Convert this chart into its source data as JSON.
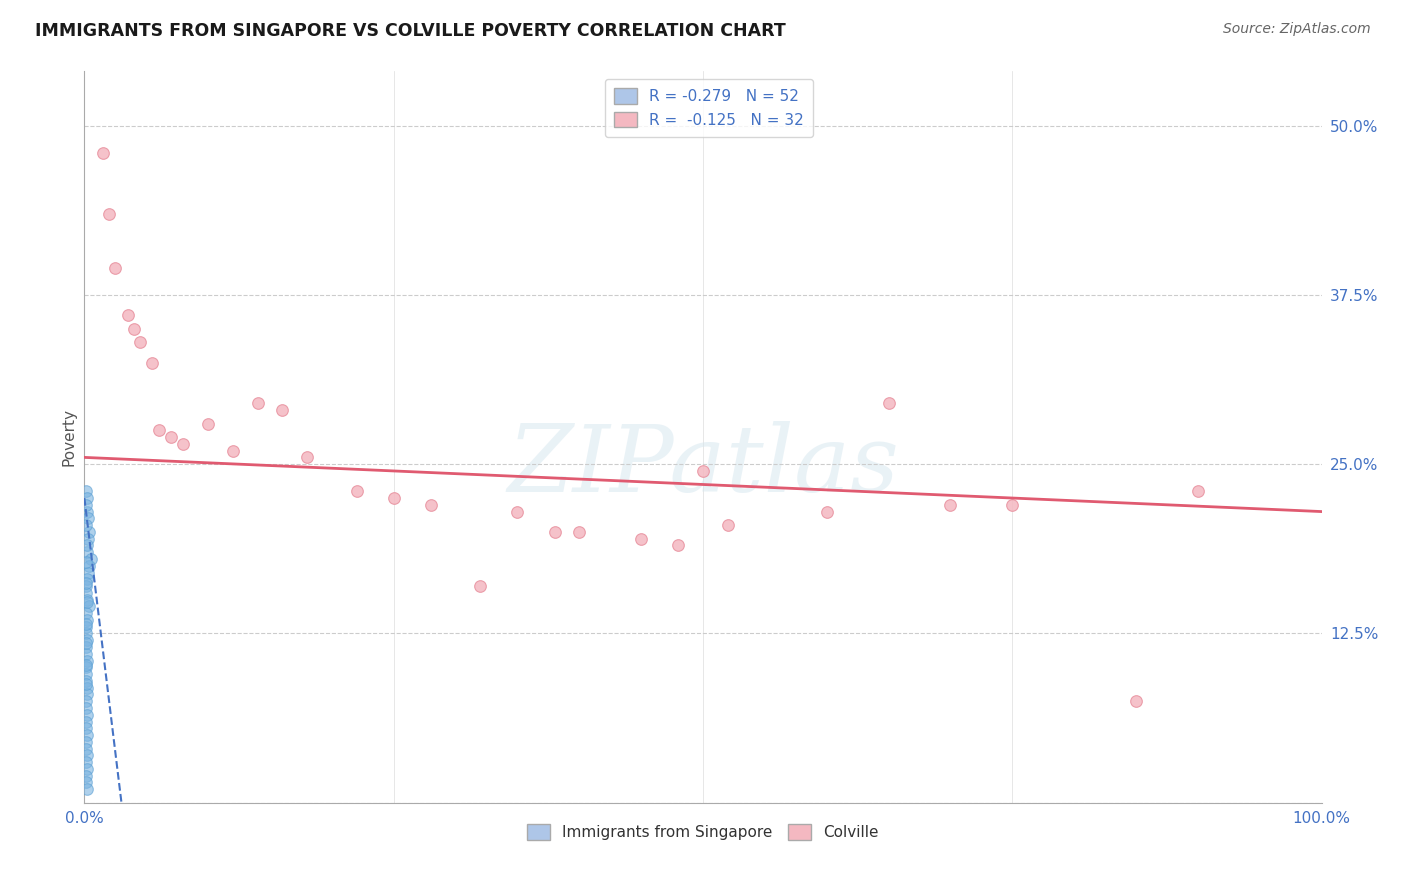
{
  "title": "IMMIGRANTS FROM SINGAPORE VS COLVILLE POVERTY CORRELATION CHART",
  "source": "Source: ZipAtlas.com",
  "ylabel": "Poverty",
  "xlim": [
    0,
    100
  ],
  "ylim": [
    0,
    54
  ],
  "yticks": [
    0,
    12.5,
    25.0,
    37.5,
    50.0
  ],
  "ytick_labels": [
    "",
    "12.5%",
    "25.0%",
    "37.5%",
    "50.0%"
  ],
  "xticks": [
    0,
    25,
    50,
    75,
    100
  ],
  "xtick_labels": [
    "0.0%",
    "",
    "",
    "",
    "100.0%"
  ],
  "grid_color": "#cccccc",
  "background_color": "#ffffff",
  "watermark_text": "ZIPatlas",
  "legend": {
    "series1_label": "R = -0.279   N = 52",
    "series2_label": "R =  -0.125   N = 32",
    "series1_color": "#aec6e8",
    "series2_color": "#f4b8c1"
  },
  "blue_scatter": {
    "color": "#7ab3e0",
    "edge_color": "#5a9fd4",
    "alpha": 0.6,
    "size": 70,
    "x": [
      0.15,
      0.2,
      0.25,
      0.3,
      0.4,
      0.3,
      0.2,
      0.5,
      0.4,
      0.3,
      0.2,
      0.15,
      0.1,
      0.25,
      0.35,
      0.15,
      0.2,
      0.1,
      0.15,
      0.2,
      0.15,
      0.1,
      0.2,
      0.15,
      0.1,
      0.15,
      0.2,
      0.25,
      0.15,
      0.1,
      0.2,
      0.15,
      0.1,
      0.2,
      0.15,
      0.1,
      0.2,
      0.15,
      0.25,
      0.1,
      0.15,
      0.2,
      0.1,
      0.15,
      0.2,
      0.1,
      0.15,
      0.2,
      0.1,
      0.15,
      0.1,
      0.15
    ],
    "y": [
      23.0,
      22.5,
      21.5,
      21.0,
      20.0,
      19.5,
      18.5,
      18.0,
      17.5,
      17.0,
      16.5,
      16.0,
      15.5,
      15.0,
      14.5,
      14.0,
      13.5,
      13.0,
      12.5,
      12.0,
      11.5,
      11.0,
      10.5,
      10.0,
      9.5,
      9.0,
      8.5,
      8.0,
      7.5,
      7.0,
      6.5,
      6.0,
      5.5,
      5.0,
      4.5,
      4.0,
      3.5,
      3.0,
      2.5,
      2.0,
      1.5,
      1.0,
      22.0,
      20.5,
      19.0,
      17.8,
      16.2,
      14.8,
      13.2,
      11.8,
      10.2,
      8.8
    ]
  },
  "pink_scatter": {
    "color": "#f4b8c1",
    "edge_color": "#e8909e",
    "alpha": 0.85,
    "size": 70,
    "x": [
      1.5,
      2.0,
      2.5,
      3.5,
      4.0,
      4.5,
      5.5,
      6.0,
      7.0,
      8.0,
      10.0,
      12.0,
      14.0,
      16.0,
      18.0,
      22.0,
      25.0,
      28.0,
      32.0,
      35.0,
      38.0,
      40.0,
      45.0,
      48.0,
      50.0,
      52.0,
      60.0,
      65.0,
      70.0,
      75.0,
      85.0,
      90.0
    ],
    "y": [
      48.0,
      43.5,
      39.5,
      36.0,
      35.0,
      34.0,
      32.5,
      27.5,
      27.0,
      26.5,
      28.0,
      26.0,
      29.5,
      29.0,
      25.5,
      23.0,
      22.5,
      22.0,
      16.0,
      21.5,
      20.0,
      20.0,
      19.5,
      19.0,
      24.5,
      20.5,
      21.5,
      29.5,
      22.0,
      22.0,
      7.5,
      23.0
    ]
  },
  "blue_line": {
    "color": "#4472c4",
    "style": "--",
    "x_start": 0.0,
    "x_end": 3.0,
    "y_start": 22.5,
    "y_end": 0.0
  },
  "pink_line": {
    "color": "#e05a70",
    "style": "-",
    "x_start": 0,
    "x_end": 100,
    "y_start": 25.5,
    "y_end": 21.5
  }
}
